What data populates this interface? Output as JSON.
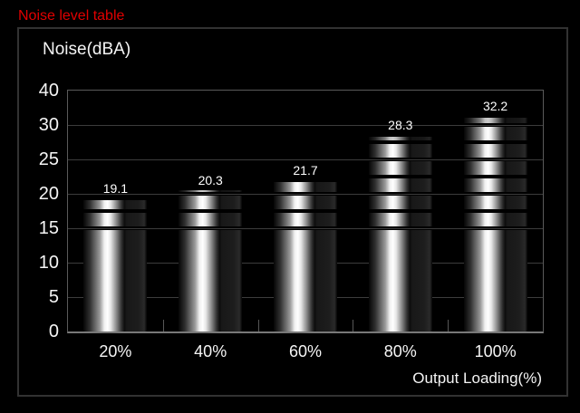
{
  "title": "Noise level table",
  "chart_data": {
    "type": "bar",
    "title": "Noise(dBA)",
    "xlabel": "Output Loading(%)",
    "categories": [
      "20%",
      "40%",
      "60%",
      "80%",
      "100%"
    ],
    "values": [
      19.1,
      20.3,
      21.7,
      28.3,
      32.2
    ],
    "value_labels": [
      "19.1",
      "20.3",
      "21.7",
      "28.3",
      "32.2"
    ],
    "y_ticks": [
      0,
      5,
      10,
      15,
      20,
      25,
      30,
      40
    ],
    "y_tick_labels": [
      "0",
      "5",
      "10",
      "15",
      "20",
      "25",
      "30",
      "40"
    ],
    "axis_style": "y ticks equally spaced (non-linear above 30)",
    "grid": true,
    "legend": false,
    "bar_style": "metallic cylinder, solid body 0-15 dBA, stacked coin segments of 2.5 dBA above 15"
  },
  "colors": {
    "background": "#000000",
    "page_title_red": "#e00000",
    "text": "#f5f5f5",
    "gridline": "#3c3c3c",
    "plot_border": "#5a5a5a",
    "x_axis_line": "#787878",
    "panel_border": "#323232",
    "bar_highlight": "#ffffff",
    "bar_shadow_side": "#1d1d1d"
  }
}
